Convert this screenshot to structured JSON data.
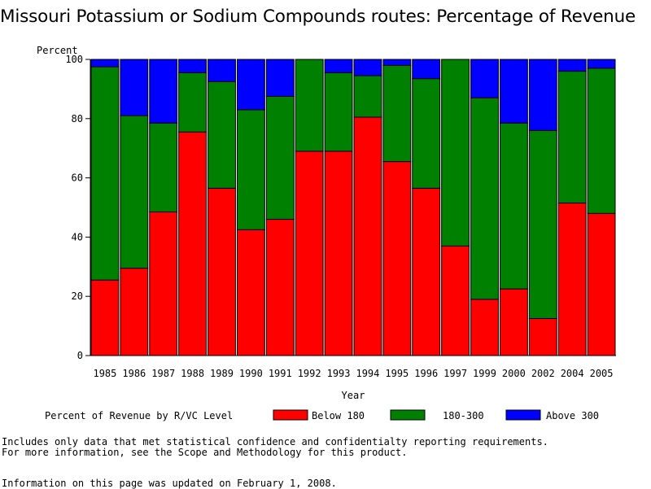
{
  "chart_data": {
    "type": "bar",
    "stacked": true,
    "title": "Missouri Potassium or Sodium Compounds routes: Percentage of Revenue",
    "xlabel": "Year",
    "ylabel": "Percent",
    "ylim": [
      0,
      100
    ],
    "yticks": [
      "0",
      "20",
      "40",
      "60",
      "80",
      "100"
    ],
    "categories": [
      "1985",
      "1986",
      "1987",
      "1988",
      "1989",
      "1990",
      "1991",
      "1992",
      "1993",
      "1994",
      "1995",
      "1996",
      "1997",
      "1999",
      "2000",
      "2002",
      "2004",
      "2005"
    ],
    "series": [
      {
        "name": "Below 180",
        "color": "#ff0000",
        "values": [
          25.5,
          29.5,
          48.5,
          75.5,
          56.5,
          42.5,
          46,
          69,
          69,
          80.5,
          65.5,
          56.5,
          37,
          19,
          22.5,
          12.5,
          51.5,
          48
        ]
      },
      {
        "name": "180-300",
        "color": "#008000",
        "values": [
          72,
          51.5,
          30,
          20,
          36,
          40.5,
          41.5,
          31,
          26.5,
          14,
          32.5,
          37,
          63,
          68,
          56,
          63.5,
          44.5,
          49
        ]
      },
      {
        "name": "Above 300",
        "color": "#0000ff",
        "values": [
          2.5,
          19,
          21.5,
          4.5,
          7.5,
          17,
          12.5,
          0,
          4.5,
          5.5,
          2,
          6.5,
          0,
          13,
          21.5,
          24,
          4,
          3
        ]
      }
    ],
    "legend": {
      "title": "Percent of Revenue by R/VC Level",
      "position": "bottom"
    }
  },
  "notes": [
    "Includes only data that met statistical confidence and confidentialty reporting requirements.",
    "For more information, see the Scope and Methodology for this product.",
    "Information on this page was updated on February 1, 2008."
  ]
}
